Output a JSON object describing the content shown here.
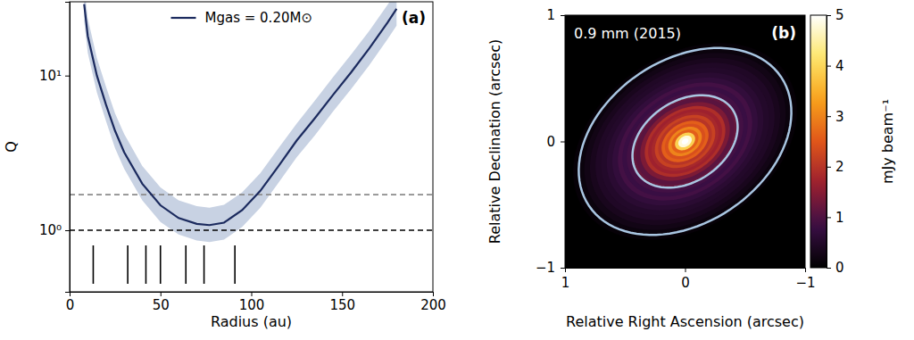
{
  "chart_data": [
    {
      "type": "line",
      "log": "y",
      "xlabel": "Radius (au)",
      "ylabel": "Q",
      "xlim": [
        0,
        200
      ],
      "xticks": [
        0,
        50,
        100,
        150,
        200
      ],
      "ylim": [
        0.4,
        30
      ],
      "yticks": [
        {
          "value": 1,
          "label": "10⁰"
        },
        {
          "value": 10,
          "label": "10¹"
        }
      ],
      "legend": "upper center",
      "annotations": [
        "(a)"
      ],
      "x": [
        8,
        10,
        15,
        20,
        25,
        30,
        40,
        50,
        60,
        70,
        77,
        85,
        95,
        105,
        115,
        125,
        135,
        145,
        155,
        165,
        175,
        180
      ],
      "series": [
        {
          "name": "Mgas = 0.20M⊙",
          "color": "#1b2a5e",
          "values": [
            29,
            18,
            10,
            6.5,
            4.4,
            3.2,
            2.0,
            1.45,
            1.2,
            1.1,
            1.08,
            1.12,
            1.35,
            1.8,
            2.6,
            3.8,
            5.3,
            7.5,
            10.5,
            15,
            22,
            27
          ],
          "lower": [
            22.6,
            14,
            7.8,
            5.1,
            3.4,
            2.5,
            1.56,
            1.13,
            0.94,
            0.86,
            0.84,
            0.87,
            1.05,
            1.4,
            2.03,
            2.96,
            4.1,
            5.85,
            8.2,
            11.7,
            17.2,
            21
          ],
          "upper": [
            37.7,
            23.4,
            13,
            8.5,
            5.7,
            4.2,
            2.6,
            1.89,
            1.56,
            1.43,
            1.4,
            1.46,
            1.76,
            2.34,
            3.4,
            4.9,
            6.9,
            9.75,
            13.7,
            19.5,
            28.6,
            35.1
          ]
        }
      ],
      "reference_lines": [
        {
          "value": 1.7,
          "color": "#8c8c8c",
          "line_style": "dashed"
        },
        {
          "value": 1,
          "color": "#000000",
          "line_style": "dashed"
        }
      ],
      "vlines": [
        13,
        32,
        42,
        50,
        64,
        74,
        91
      ]
    },
    {
      "type": "image",
      "xlabel": "Relative Right Ascension (arcsec)",
      "ylabel": "Relative Declination (arcsec)",
      "xlim": [
        1,
        -1
      ],
      "xticks": [
        1,
        0,
        {
          "value": -1,
          "label": "−1"
        }
      ],
      "ylim": [
        -1,
        1
      ],
      "yticks": [
        {
          "value": -1,
          "label": "−1"
        },
        0,
        1
      ],
      "annotations": [
        "0.9 mm (2015)",
        "(b)"
      ],
      "image": {
        "r": [
          0.03,
          0.06,
          0.09,
          0.12,
          0.15,
          0.18,
          0.21,
          0.24,
          0.27,
          0.3,
          0.33,
          0.36,
          0.4,
          0.44,
          0.48,
          0.52,
          0.56,
          0.6,
          0.65,
          0.7,
          0.75,
          0.8,
          0.85,
          0.9,
          0.95,
          1.0
        ],
        "values": [
          5.2,
          4.8,
          3.9,
          2.6,
          3.0,
          2.4,
          2.6,
          2.0,
          2.2,
          1.8,
          1.7,
          1.9,
          1.4,
          1.1,
          1.2,
          0.9,
          0.8,
          0.9,
          0.7,
          0.6,
          0.5,
          0.45,
          0.35,
          0.25,
          0.15,
          0.08
        ]
      },
      "axis_ratio": 0.69,
      "position_angle": 120,
      "outlines": [
        0.47,
        0.95
      ],
      "colorbar": {
        "range": [
          0,
          5
        ],
        "ticks": [
          0,
          1,
          2,
          3,
          4,
          5
        ],
        "label": "mJy beam⁻¹"
      }
    }
  ]
}
